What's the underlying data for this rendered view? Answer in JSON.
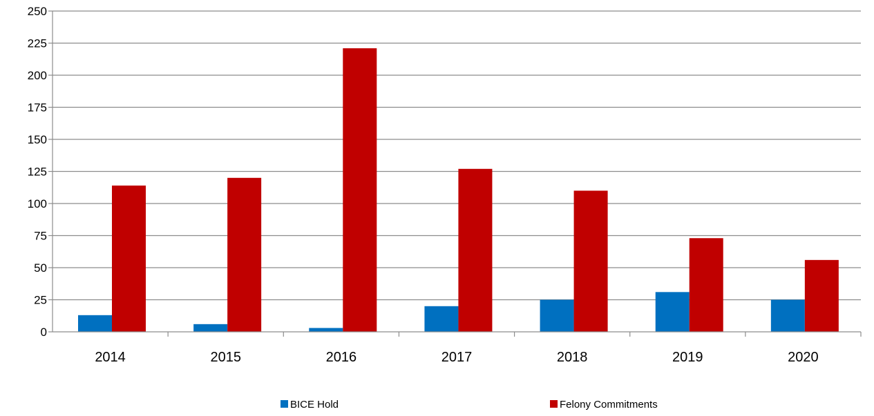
{
  "chart_data": {
    "type": "bar",
    "title": "",
    "xlabel": "",
    "ylabel": "",
    "categories": [
      "2014",
      "2015",
      "2016",
      "2017",
      "2018",
      "2019",
      "2020"
    ],
    "series": [
      {
        "name": "BICE Hold",
        "color": "#0070C0",
        "values": [
          13,
          6,
          3,
          20,
          25,
          31,
          25
        ]
      },
      {
        "name": "Felony Commitments",
        "color": "#C00000",
        "values": [
          114,
          120,
          221,
          127,
          110,
          73,
          56
        ]
      }
    ],
    "ylim": [
      0,
      250
    ],
    "yticks": [
      0,
      25,
      50,
      75,
      100,
      125,
      150,
      175,
      200,
      225,
      250
    ],
    "grid": true,
    "legend": "bottom"
  }
}
